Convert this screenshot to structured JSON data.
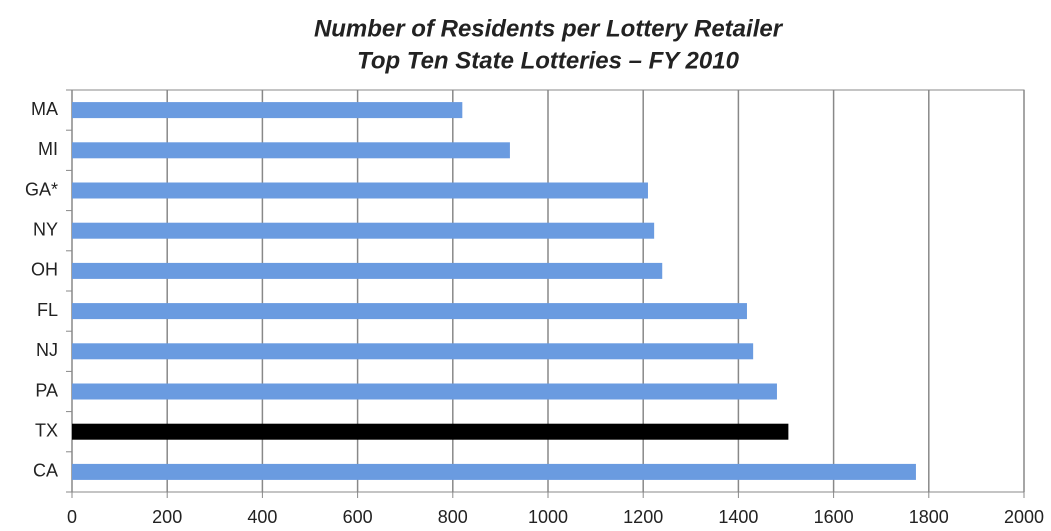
{
  "chart_data": {
    "type": "barh",
    "title": "Number of Residents per Lottery Retailer",
    "subtitle": "Top Ten State Lotteries – FY 2010",
    "categories": [
      "MA",
      "MI",
      "GA*",
      "NY",
      "OH",
      "FL",
      "NJ",
      "PA",
      "TX",
      "CA"
    ],
    "values": [
      820,
      920,
      1210,
      1223,
      1240,
      1418,
      1431,
      1481,
      1505,
      1773
    ],
    "colors": [
      "#6a9be0",
      "#6a9be0",
      "#6a9be0",
      "#6a9be0",
      "#6a9be0",
      "#6a9be0",
      "#6a9be0",
      "#6a9be0",
      "#000000",
      "#6a9be0"
    ],
    "xlim": [
      0,
      2000
    ],
    "xticks": [
      0,
      200,
      400,
      600,
      800,
      1000,
      1200,
      1400,
      1600,
      1800,
      2000
    ],
    "grid": true
  }
}
